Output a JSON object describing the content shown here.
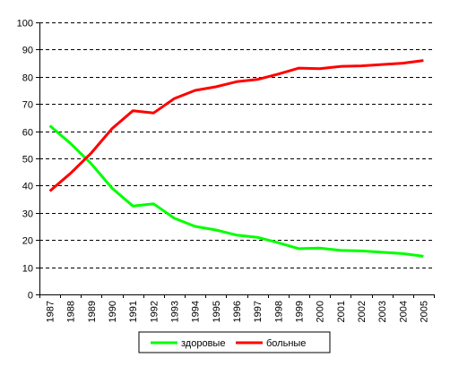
{
  "chart_data": {
    "type": "line",
    "title": "",
    "xlabel": "",
    "ylabel": "",
    "x": [
      "1987",
      "1988",
      "1989",
      "1990",
      "1991",
      "1992",
      "1993",
      "1994",
      "1995",
      "1996",
      "1997",
      "1998",
      "1999",
      "2000",
      "2001",
      "2002",
      "2003",
      "2004",
      "2005"
    ],
    "ylim": [
      0,
      100
    ],
    "yticks": [
      0,
      10,
      20,
      30,
      40,
      50,
      60,
      70,
      80,
      90,
      100
    ],
    "grid": "horizontal-dashed",
    "legend_position": "bottom",
    "series": [
      {
        "name": "здоровые",
        "color": "#00ff00",
        "values": [
          62,
          55.5,
          48,
          39,
          32.5,
          33.3,
          28,
          25,
          23.7,
          21.8,
          21,
          19,
          16.8,
          17,
          16.2,
          16,
          15.5,
          15,
          14
        ]
      },
      {
        "name": "больные",
        "color": "#ff0000",
        "values": [
          38,
          44.5,
          52,
          61,
          67.5,
          66.7,
          72,
          75,
          76.3,
          78.2,
          79,
          81,
          83.2,
          83,
          83.8,
          84,
          84.5,
          85,
          86
        ]
      }
    ]
  }
}
